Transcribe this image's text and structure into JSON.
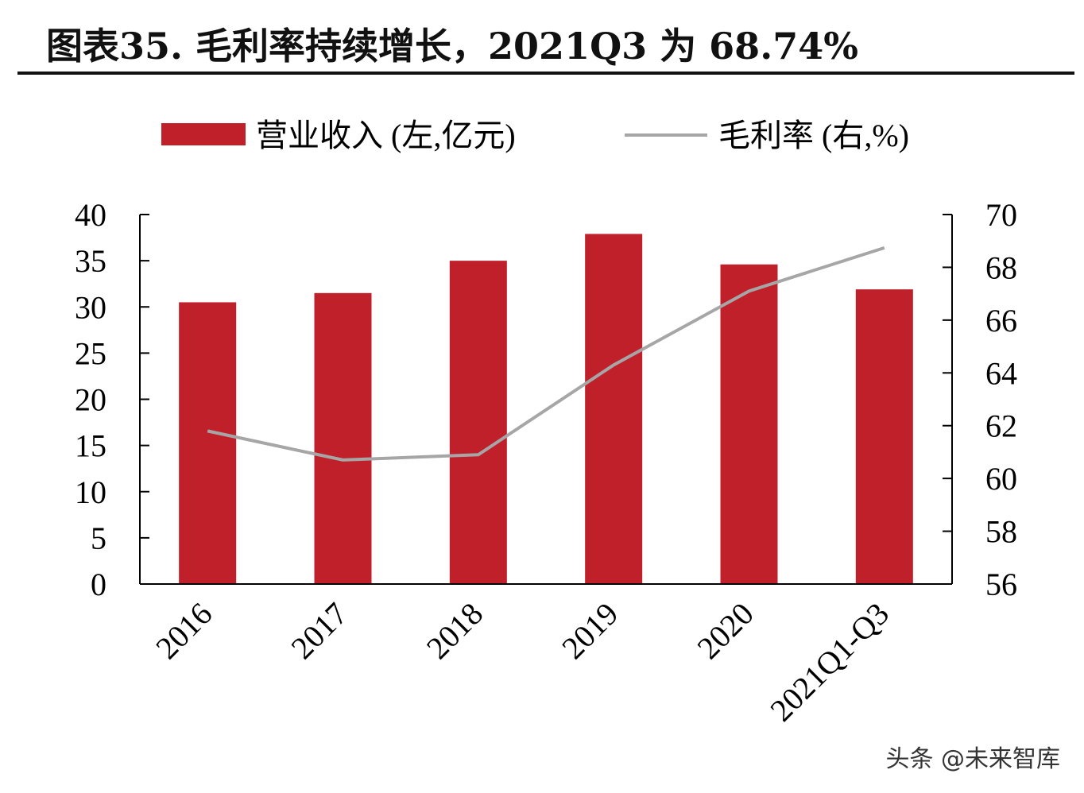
{
  "title": "图表35. 毛利率持续增长，2021Q3 为 68.74%",
  "watermark": "头条 @未来智库",
  "chart_data": {
    "type": "bar+line",
    "categories": [
      "2016",
      "2017",
      "2018",
      "2019",
      "2020",
      "2021Q1-Q3"
    ],
    "series": [
      {
        "name": "营业收入 (左,亿元)",
        "type": "bar",
        "axis": "left",
        "color": "#c0202a",
        "values": [
          30.5,
          31.5,
          35.0,
          37.9,
          34.6,
          31.9
        ]
      },
      {
        "name": "毛利率 (右,%)",
        "type": "line",
        "axis": "right",
        "color": "#a6a6a6",
        "values": [
          61.8,
          60.7,
          60.9,
          64.3,
          67.1,
          68.74
        ]
      }
    ],
    "left_axis": {
      "range": [
        0,
        40
      ],
      "ticks": [
        "0",
        "5",
        "10",
        "15",
        "20",
        "25",
        "30",
        "35",
        "40"
      ]
    },
    "right_axis": {
      "range": [
        56,
        70
      ],
      "ticks": [
        "56",
        "58",
        "60",
        "62",
        "64",
        "66",
        "68",
        "70"
      ]
    },
    "legend": "top",
    "grid": false
  }
}
